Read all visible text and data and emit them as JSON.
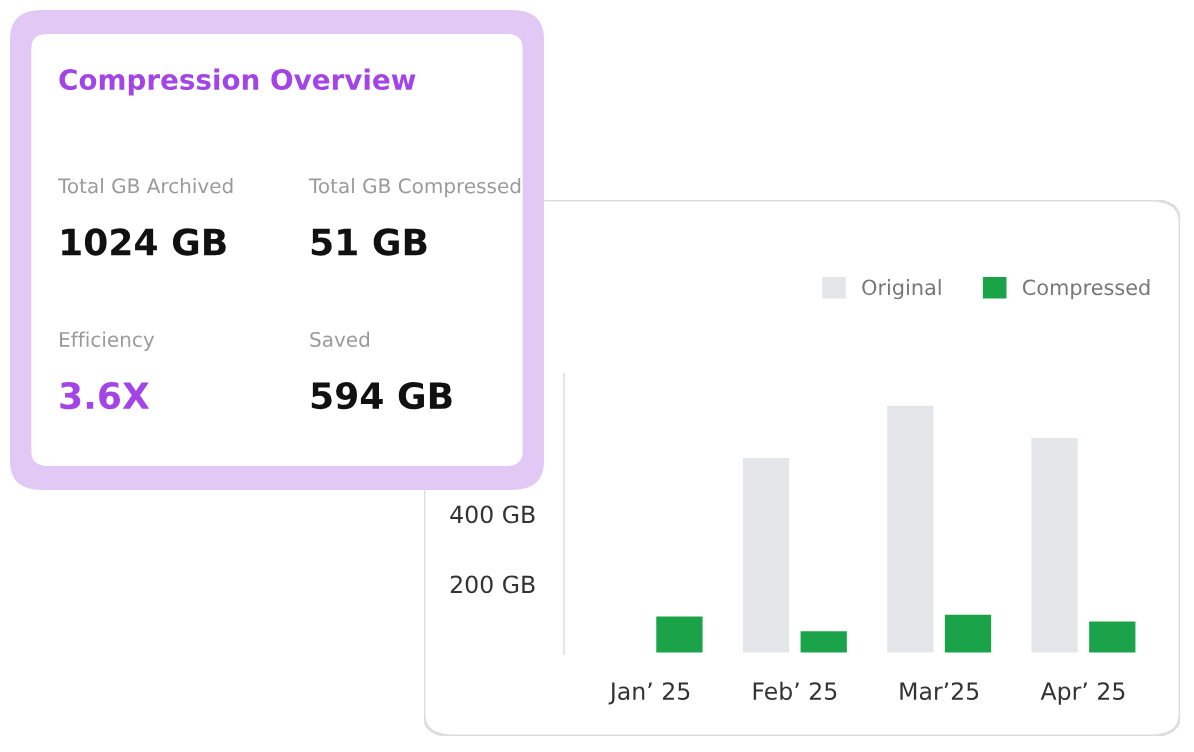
{
  "chart_data": [
    {
      "type": "other",
      "title": "Compression Overview",
      "annotations": [
        "Total GB Archived",
        "1024 GB",
        "Total GB Compressed",
        "51 GB",
        "Efficiency",
        "3.6X",
        "Saved",
        "594 GB"
      ]
    },
    {
      "type": "bar",
      "categories": [
        "Jan’ 25",
        "Feb’ 25",
        "Mar’25",
        "Apr’ 25"
      ],
      "series": [
        {
          "name": "Original",
          "color": "#e5e6ea",
          "values": [
            null,
            564,
            713,
            621
          ]
        },
        {
          "name": "Compressed",
          "color": "#1ba34a",
          "values": [
            111,
            69,
            116,
            97
          ]
        }
      ],
      "ylim": [
        0,
        800
      ],
      "yticks": [
        {
          "value": 200,
          "label": "200 GB"
        },
        {
          "value": 400,
          "label": "400 GB"
        }
      ],
      "grid": false,
      "legend": "top right"
    }
  ]
}
